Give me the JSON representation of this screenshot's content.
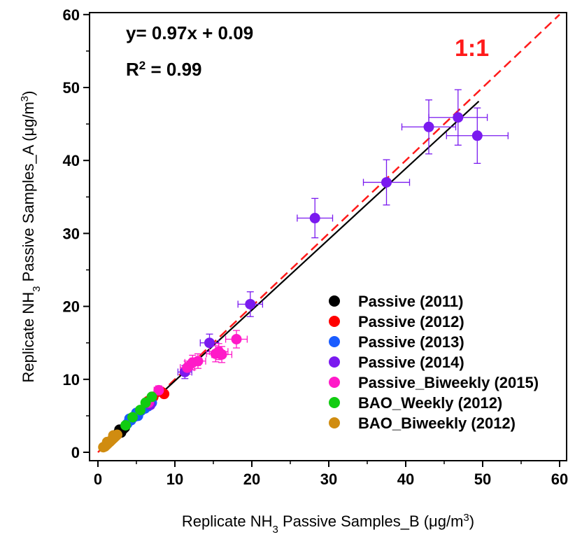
{
  "chart_data": {
    "type": "scatter",
    "xlabel": "Replicate NH3 Passive  Samples_B (μg/m3)",
    "ylabel": "Replicate NH3 Passive Samples_A (μg/m3)",
    "xlim": [
      0,
      60
    ],
    "ylim": [
      0,
      60
    ],
    "x_ticks": [
      0,
      10,
      20,
      30,
      40,
      50,
      60
    ],
    "y_ticks": [
      0,
      10,
      20,
      30,
      40,
      50,
      60
    ],
    "grid": false,
    "legend_position": "bottom-right",
    "annotations": {
      "equation": "y= 0.97x + 0.09",
      "r2": "R2 = 0.99",
      "ratio_label": "1:1"
    },
    "fit_line": {
      "slope": 0.97,
      "intercept": 0.09,
      "x_range": [
        0.5,
        49.5
      ],
      "color": "#000000"
    },
    "reference_line": {
      "label": "1:1",
      "slope": 1,
      "intercept": 0,
      "x_range": [
        0,
        60
      ],
      "color": "#ff1a1a"
    },
    "series": [
      {
        "name": "Passive (2011)",
        "color": "#000000",
        "points": [
          [
            2.6,
            2.6
          ],
          [
            2.9,
            2.8
          ],
          [
            3.1,
            3.0
          ],
          [
            3.3,
            3.2
          ],
          [
            2.8,
            3.1
          ],
          [
            3.5,
            3.4
          ],
          [
            3.0,
            2.7
          ]
        ]
      },
      {
        "name": "Passive (2012)",
        "color": "#ff0000",
        "points": [
          [
            6.5,
            7.0
          ],
          [
            7.2,
            7.6
          ],
          [
            8.2,
            8.3
          ],
          [
            8.6,
            8.0
          ],
          [
            5.0,
            5.2
          ]
        ]
      },
      {
        "name": "Passive (2013)",
        "color": "#1a5cff",
        "points": [
          [
            3.8,
            3.9
          ],
          [
            4.3,
            4.4
          ],
          [
            4.8,
            4.9
          ],
          [
            5.2,
            5.0
          ],
          [
            5.6,
            5.7
          ],
          [
            6.1,
            6.0
          ],
          [
            6.5,
            6.3
          ],
          [
            4.1,
            4.6
          ],
          [
            5.0,
            5.4
          ],
          [
            7.0,
            6.8
          ]
        ]
      },
      {
        "name": "Passive (2014)",
        "color": "#7a1aef",
        "points": [
          [
            6.8,
            6.5
          ],
          [
            11.3,
            11.0
          ],
          [
            14.5,
            15.0
          ],
          [
            19.8,
            20.3
          ],
          [
            28.2,
            32.1
          ],
          [
            37.5,
            37.0
          ],
          [
            43.0,
            44.6
          ],
          [
            46.8,
            45.9
          ],
          [
            49.3,
            43.4
          ]
        ],
        "x_err": [
          0.5,
          0.9,
          1.2,
          1.6,
          2.3,
          3.0,
          3.5,
          3.8,
          4.0
        ],
        "y_err": [
          0.5,
          0.9,
          1.2,
          1.7,
          2.7,
          3.1,
          3.7,
          3.8,
          3.8
        ]
      },
      {
        "name": "Passive_Biweekly (2015)",
        "color": "#ff1ac8",
        "points": [
          [
            6.6,
            6.8
          ],
          [
            7.9,
            8.5
          ],
          [
            11.6,
            11.6
          ],
          [
            12.3,
            12.3
          ],
          [
            13.0,
            12.5
          ],
          [
            15.3,
            13.5
          ],
          [
            15.7,
            13.8
          ],
          [
            16.1,
            13.4
          ],
          [
            18.0,
            15.5
          ]
        ],
        "x_err": [
          0.5,
          0.6,
          0.9,
          1.0,
          1.0,
          1.2,
          1.2,
          1.3,
          1.4
        ],
        "y_err": [
          0.5,
          0.6,
          0.9,
          1.0,
          1.0,
          1.1,
          1.1,
          1.1,
          1.2
        ]
      },
      {
        "name": "BAO_Weekly (2012)",
        "color": "#11cc11",
        "points": [
          [
            6.2,
            6.8
          ],
          [
            7.0,
            7.6
          ],
          [
            5.5,
            5.8
          ],
          [
            4.5,
            4.8
          ],
          [
            3.6,
            3.7
          ]
        ]
      },
      {
        "name": "BAO_Biweekly (2012)",
        "color": "#d08c10",
        "points": [
          [
            0.7,
            0.7
          ],
          [
            0.9,
            0.8
          ],
          [
            1.1,
            1.0
          ],
          [
            1.3,
            1.2
          ],
          [
            1.5,
            1.4
          ],
          [
            1.7,
            1.6
          ],
          [
            1.9,
            1.8
          ],
          [
            2.1,
            2.0
          ],
          [
            2.3,
            2.2
          ],
          [
            2.5,
            2.4
          ],
          [
            1.2,
            1.4
          ],
          [
            1.6,
            1.5
          ],
          [
            2.0,
            2.3
          ]
        ]
      }
    ]
  }
}
